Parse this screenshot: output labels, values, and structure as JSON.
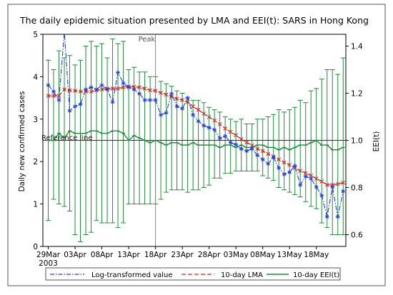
{
  "chart_data": {
    "type": "line",
    "title": "The daily epidemic situation presented by LMA and EEI(t): SARS in Hong Kong",
    "ylabel": "Daily new confirmed cases",
    "y2label": "EEI(t)",
    "ylim": [
      0,
      5
    ],
    "y2lim": [
      0.55,
      1.45
    ],
    "yticks": [
      0,
      1,
      2,
      3,
      4,
      5
    ],
    "y2ticks": [
      0.6,
      0.8,
      1.0,
      1.2,
      1.4
    ],
    "y2ticklabels": [
      "0.6",
      "0.8",
      "1.0",
      "1.2",
      "1.4"
    ],
    "xticks": [
      {
        "day": 0,
        "label": "29Mar",
        "sub": "2003"
      },
      {
        "day": 5,
        "label": "03Apr"
      },
      {
        "day": 10,
        "label": "08Apr"
      },
      {
        "day": 15,
        "label": "13Apr"
      },
      {
        "day": 20,
        "label": "18Apr"
      },
      {
        "day": 25,
        "label": "23Apr"
      },
      {
        "day": 30,
        "label": "28Apr"
      },
      {
        "day": 35,
        "label": "03May"
      },
      {
        "day": 40,
        "label": "08May"
      },
      {
        "day": 45,
        "label": "13May"
      },
      {
        "day": 50,
        "label": "18May"
      }
    ],
    "peak": {
      "day": 20,
      "label": "Peak"
    },
    "reference_line": {
      "value": 1.0,
      "label": "Reference line"
    },
    "legend": {
      "placement": "bottom",
      "entries": [
        "Log-transformed value",
        "10-day LMA",
        "10-day EEI(t)"
      ]
    },
    "colors": {
      "log": "#1f3fd6",
      "lma": "#d62020",
      "eei": "#1f8a3a",
      "grid": "#000000"
    },
    "series": [
      {
        "name": "Log-transformed value",
        "axis": "left",
        "x": [
          0,
          1,
          2,
          3,
          4,
          5,
          6,
          7,
          8,
          9,
          10,
          11,
          12,
          13,
          14,
          15,
          16,
          17,
          18,
          19,
          20,
          21,
          22,
          23,
          24,
          25,
          26,
          27,
          28,
          29,
          30,
          31,
          32,
          33,
          34,
          35,
          36,
          37,
          38,
          39,
          40,
          41,
          42,
          43,
          44,
          45,
          46,
          47,
          48,
          49,
          50,
          51,
          52,
          53,
          54,
          55
        ],
        "values": [
          3.8,
          3.65,
          3.45,
          5.05,
          3.2,
          3.3,
          3.35,
          3.7,
          3.75,
          3.7,
          3.8,
          3.7,
          3.4,
          4.1,
          3.85,
          3.75,
          3.7,
          3.6,
          3.45,
          3.45,
          3.45,
          3.1,
          3.15,
          3.6,
          3.3,
          3.25,
          3.5,
          3.1,
          2.95,
          2.85,
          2.8,
          2.75,
          2.55,
          2.6,
          2.45,
          2.4,
          2.3,
          2.25,
          2.3,
          2.15,
          2.05,
          1.95,
          2.1,
          1.85,
          1.7,
          1.75,
          1.9,
          1.45,
          1.65,
          1.6,
          1.4,
          1.2,
          0.7,
          1.4,
          0.7,
          1.3
        ]
      },
      {
        "name": "10-day LMA",
        "axis": "left",
        "x": [
          0,
          1,
          2,
          3,
          4,
          5,
          6,
          7,
          8,
          9,
          10,
          11,
          12,
          13,
          14,
          15,
          16,
          17,
          18,
          19,
          20,
          21,
          22,
          23,
          24,
          25,
          26,
          27,
          28,
          29,
          30,
          31,
          32,
          33,
          34,
          35,
          36,
          37,
          38,
          39,
          40,
          41,
          42,
          43,
          44,
          45,
          46,
          47,
          48,
          49,
          50,
          51,
          52,
          53,
          54,
          55
        ],
        "values": [
          3.55,
          3.55,
          3.55,
          3.7,
          3.68,
          3.67,
          3.65,
          3.65,
          3.65,
          3.68,
          3.7,
          3.72,
          3.72,
          3.72,
          3.75,
          3.77,
          3.76,
          3.75,
          3.72,
          3.68,
          3.67,
          3.62,
          3.58,
          3.53,
          3.48,
          3.45,
          3.4,
          3.3,
          3.22,
          3.13,
          3.05,
          2.97,
          2.88,
          2.78,
          2.7,
          2.62,
          2.53,
          2.45,
          2.38,
          2.3,
          2.25,
          2.18,
          2.12,
          2.05,
          1.98,
          1.92,
          1.85,
          1.78,
          1.73,
          1.67,
          1.6,
          1.53,
          1.45,
          1.45,
          1.47,
          1.5
        ]
      },
      {
        "name": "10-day EEI(t)",
        "axis": "right",
        "x": [
          0,
          1,
          2,
          3,
          4,
          5,
          6,
          7,
          8,
          9,
          10,
          11,
          12,
          13,
          14,
          15,
          16,
          17,
          18,
          19,
          20,
          21,
          22,
          23,
          24,
          25,
          26,
          27,
          28,
          29,
          30,
          31,
          32,
          33,
          34,
          35,
          36,
          37,
          38,
          39,
          40,
          41,
          42,
          43,
          44,
          45,
          46,
          47,
          48,
          49,
          50,
          51,
          52,
          53,
          54,
          55
        ],
        "values": [
          1.0,
          1.0,
          1.03,
          1.01,
          1.04,
          1.03,
          1.03,
          1.03,
          1.04,
          1.04,
          1.03,
          1.03,
          1.04,
          1.04,
          1.03,
          1.0,
          1.02,
          1.01,
          1.0,
          0.99,
          1.0,
          0.99,
          0.98,
          0.99,
          0.99,
          0.98,
          0.98,
          0.99,
          0.98,
          0.98,
          0.98,
          0.98,
          0.97,
          0.98,
          0.98,
          0.97,
          0.98,
          0.97,
          0.97,
          0.98,
          0.98,
          0.97,
          0.97,
          0.96,
          0.97,
          0.96,
          0.97,
          0.98,
          0.98,
          0.99,
          1.0,
          0.98,
          0.98,
          0.96,
          0.96,
          0.97
        ],
        "upper": [
          1.34,
          1.3,
          1.38,
          1.35,
          1.36,
          1.32,
          1.34,
          1.4,
          1.42,
          1.4,
          1.41,
          1.35,
          1.43,
          1.41,
          1.42,
          1.3,
          1.31,
          1.29,
          1.29,
          1.27,
          1.27,
          1.25,
          1.24,
          1.23,
          1.21,
          1.2,
          1.18,
          1.17,
          1.17,
          1.16,
          1.14,
          1.13,
          1.12,
          1.1,
          1.09,
          1.08,
          1.09,
          1.07,
          1.07,
          1.09,
          1.09,
          1.1,
          1.11,
          1.13,
          1.12,
          1.13,
          1.14,
          1.17,
          1.16,
          1.21,
          1.22,
          1.26,
          1.3,
          1.3,
          1.28,
          1.35
        ],
        "lower": [
          0.66,
          0.75,
          0.73,
          0.72,
          0.7,
          0.6,
          0.57,
          0.6,
          0.61,
          0.66,
          0.65,
          0.65,
          0.65,
          0.63,
          0.65,
          0.73,
          0.73,
          0.73,
          0.73,
          0.73,
          0.73,
          0.75,
          0.78,
          0.79,
          0.79,
          0.79,
          0.78,
          0.79,
          0.79,
          0.8,
          0.81,
          0.84,
          0.84,
          0.86,
          0.86,
          0.87,
          0.87,
          0.87,
          0.87,
          0.87,
          0.85,
          0.84,
          0.83,
          0.8,
          0.79,
          0.78,
          0.77,
          0.76,
          0.74,
          0.72,
          0.71,
          0.65,
          0.63,
          0.6,
          0.6,
          0.6
        ]
      }
    ]
  }
}
